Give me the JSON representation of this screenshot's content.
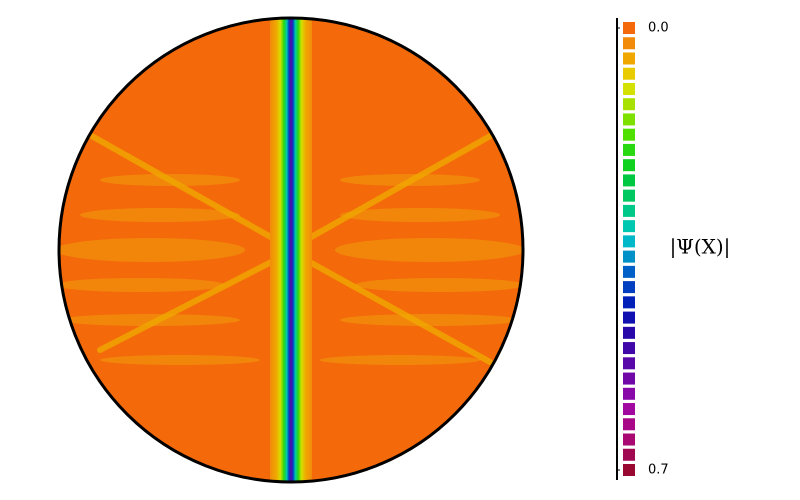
{
  "chart_data": {
    "type": "contour",
    "colorbar": {
      "label": "|Ψ(X)|",
      "clim": [
        0,
        0.7
      ],
      "ticks": [
        {
          "value": 0,
          "label": "0.0"
        },
        {
          "value": 0.7,
          "label": "0.7"
        }
      ],
      "colors": [
        "#f46a0a",
        "#f28a0c",
        "#f0a800",
        "#e8cc00",
        "#d4e000",
        "#a8e000",
        "#7ee000",
        "#50e000",
        "#28d810",
        "#10d020",
        "#00c840",
        "#00c860",
        "#00c888",
        "#00c8b0",
        "#00b8c8",
        "#0090c8",
        "#0060c8",
        "#0040c0",
        "#0020b8",
        "#1010b0",
        "#2808a8",
        "#4008a8",
        "#5808a8",
        "#7008a8",
        "#8808a8",
        "#a008a0",
        "#a80888",
        "#a80870",
        "#a00850",
        "#980830"
      ]
    }
  }
}
